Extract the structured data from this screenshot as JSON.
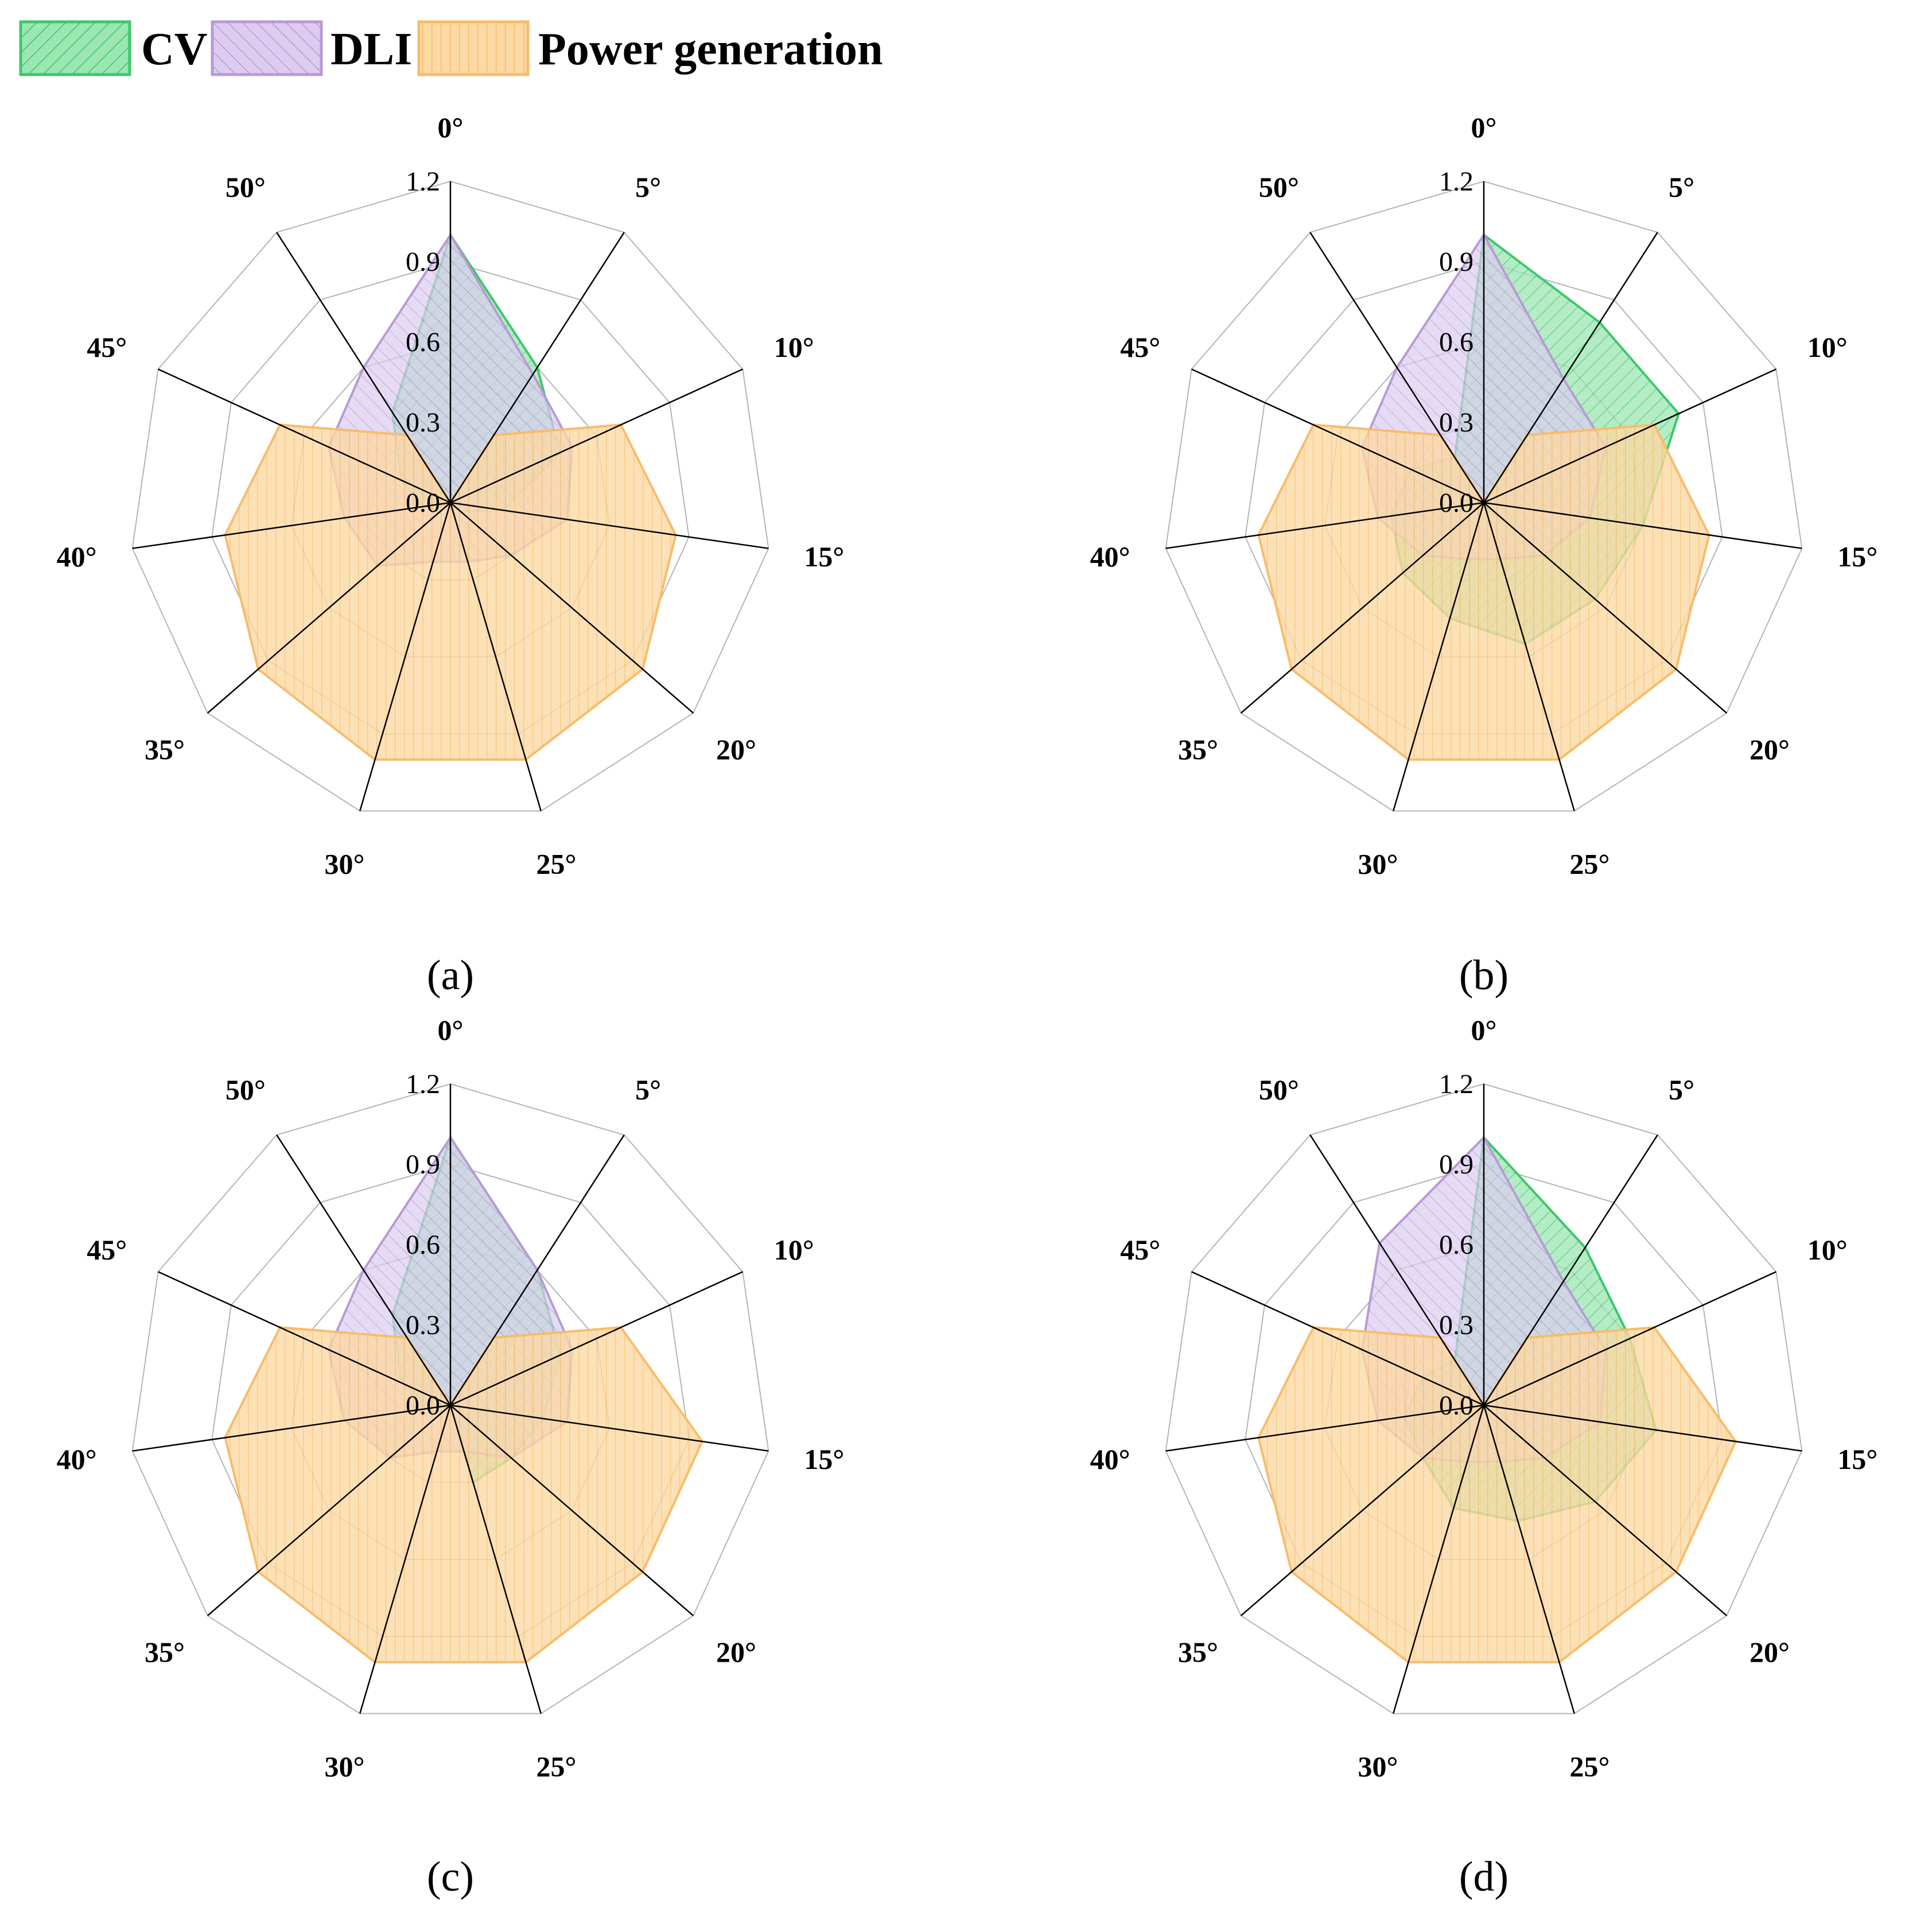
{
  "legend": [
    {
      "label": "CV",
      "color": "#3cc76a",
      "fill": "#9be6b2"
    },
    {
      "label": "DLI",
      "color": "#b89ad6",
      "fill": "#dcccf0"
    },
    {
      "label": "Power generation",
      "color": "#f8bc6a",
      "fill": "#fcd9a4"
    }
  ],
  "chart_data": [
    {
      "type": "radar",
      "panel_label": "(a)",
      "categories": [
        "0°",
        "5°",
        "10°",
        "15°",
        "20°",
        "25°",
        "30°",
        "35°",
        "40°",
        "45°",
        "50°"
      ],
      "radial_ticks": [
        "0.0",
        "0.3",
        "0.6",
        "0.9",
        "1.2"
      ],
      "rlim": [
        0,
        1.2
      ],
      "series": [
        {
          "name": "CV",
          "values": [
            1.0,
            0.6,
            0.45,
            0.2,
            0.05,
            0.0,
            0.0,
            0.05,
            0.1,
            0.2,
            0.4
          ]
        },
        {
          "name": "DLI",
          "values": [
            1.0,
            0.57,
            0.5,
            0.44,
            0.3,
            0.23,
            0.23,
            0.36,
            0.4,
            0.5,
            0.6
          ]
        },
        {
          "name": "Power generation",
          "values": [
            0.0,
            0.3,
            0.7,
            0.85,
            0.95,
            1.0,
            1.0,
            0.95,
            0.85,
            0.7,
            0.3
          ]
        }
      ]
    },
    {
      "type": "radar",
      "panel_label": "(b)",
      "categories": [
        "0°",
        "5°",
        "10°",
        "15°",
        "20°",
        "25°",
        "30°",
        "35°",
        "40°",
        "45°",
        "50°"
      ],
      "radial_ticks": [
        "0.0",
        "0.3",
        "0.6",
        "0.9",
        "1.2"
      ],
      "rlim": [
        0,
        1.2
      ],
      "series": [
        {
          "name": "CV",
          "values": [
            1.0,
            0.8,
            0.8,
            0.6,
            0.55,
            0.55,
            0.45,
            0.4,
            0.35,
            0.3,
            0.2
          ]
        },
        {
          "name": "DLI",
          "values": [
            1.0,
            0.55,
            0.5,
            0.4,
            0.3,
            0.22,
            0.22,
            0.3,
            0.4,
            0.5,
            0.6
          ]
        },
        {
          "name": "Power generation",
          "values": [
            0.0,
            0.3,
            0.7,
            0.85,
            0.95,
            1.0,
            1.0,
            0.95,
            0.85,
            0.7,
            0.3
          ]
        }
      ]
    },
    {
      "type": "radar",
      "panel_label": "(c)",
      "categories": [
        "0°",
        "5°",
        "10°",
        "15°",
        "20°",
        "25°",
        "30°",
        "35°",
        "40°",
        "45°",
        "50°"
      ],
      "radial_ticks": [
        "0.0",
        "0.3",
        "0.6",
        "0.9",
        "1.2"
      ],
      "rlim": [
        0,
        1.2
      ],
      "series": [
        {
          "name": "CV",
          "values": [
            1.0,
            0.6,
            0.45,
            0.35,
            0.3,
            0.3,
            0.0,
            0.05,
            0.1,
            0.2,
            0.4
          ]
        },
        {
          "name": "DLI",
          "values": [
            1.0,
            0.6,
            0.5,
            0.44,
            0.3,
            0.18,
            0.18,
            0.3,
            0.4,
            0.5,
            0.6
          ]
        },
        {
          "name": "Power generation",
          "values": [
            0.0,
            0.3,
            0.7,
            0.95,
            0.95,
            1.0,
            1.0,
            0.95,
            0.85,
            0.7,
            0.3
          ]
        }
      ]
    },
    {
      "type": "radar",
      "panel_label": "(d)",
      "categories": [
        "0°",
        "5°",
        "10°",
        "15°",
        "20°",
        "25°",
        "30°",
        "35°",
        "40°",
        "45°",
        "50°"
      ],
      "radial_ticks": [
        "0.0",
        "0.3",
        "0.6",
        "0.9",
        "1.2"
      ],
      "rlim": [
        0,
        1.2
      ],
      "series": [
        {
          "name": "CV",
          "values": [
            1.0,
            0.7,
            0.6,
            0.65,
            0.55,
            0.45,
            0.4,
            0.3,
            0.3,
            0.25,
            0.2
          ]
        },
        {
          "name": "DLI",
          "values": [
            1.0,
            0.55,
            0.5,
            0.44,
            0.3,
            0.22,
            0.22,
            0.3,
            0.4,
            0.5,
            0.72
          ]
        },
        {
          "name": "Power generation",
          "values": [
            0.0,
            0.3,
            0.7,
            0.95,
            0.95,
            1.0,
            1.0,
            0.95,
            0.85,
            0.7,
            0.3
          ]
        }
      ]
    }
  ]
}
